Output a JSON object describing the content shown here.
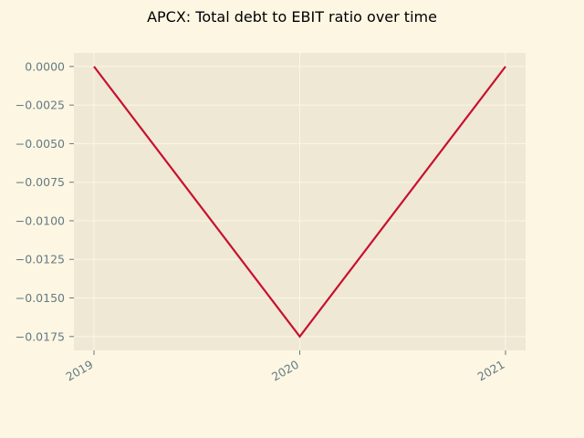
{
  "chart_data": {
    "type": "line",
    "title": "APCX: Total debt to EBIT ratio over time",
    "xlabel": "",
    "ylabel": "",
    "x": [
      "2019",
      "2020",
      "2021"
    ],
    "series": [
      {
        "values": [
          0.0,
          -0.0175,
          0.0
        ]
      }
    ],
    "yticks": [
      0.0,
      -0.0025,
      -0.005,
      -0.0075,
      -0.01,
      -0.0125,
      -0.015,
      -0.0175
    ],
    "ytick_labels": [
      "0.0000",
      "−0.0025",
      "−0.0050",
      "−0.0075",
      "−0.0100",
      "−0.0125",
      "−0.0150",
      "−0.0175"
    ],
    "ylim": [
      -0.0184,
      0.00088
    ],
    "grid": true,
    "colors": {
      "background": "#fdf6e3",
      "plot_area": "#eee8d5",
      "line": "#c8102e",
      "grid": "#fdf6e3",
      "tick_text": "#657b83"
    }
  }
}
